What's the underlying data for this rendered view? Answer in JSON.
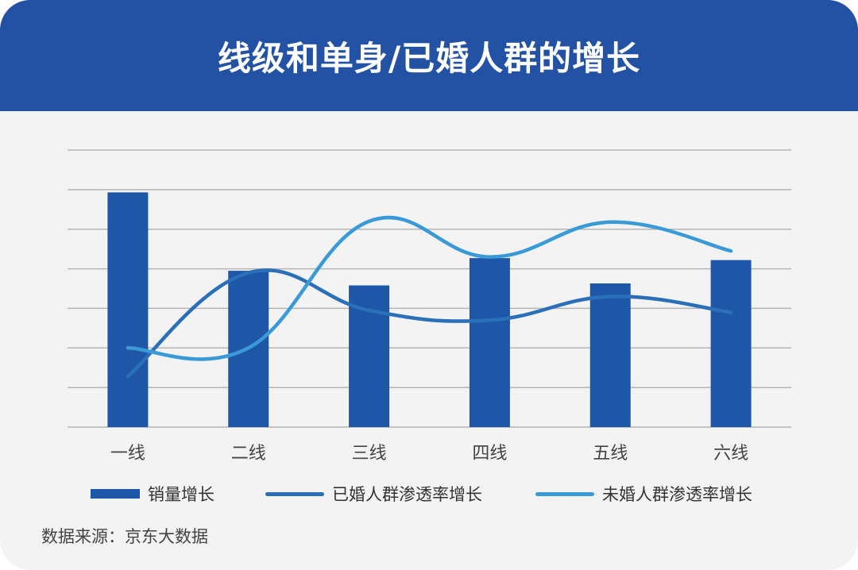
{
  "header": {
    "title": "线级和单身/已婚人群的增长"
  },
  "colors": {
    "header_bg": "#2352a5",
    "bar": "#1f57a8",
    "married_line": "#2a6fb8",
    "unmarried_line": "#3a9ad8",
    "grid": "#b5b5b5",
    "card_bg": "#f3f3f3"
  },
  "chart_data": {
    "type": "bar",
    "title": "线级和单身/已婚人群的增长",
    "categories": [
      "一线",
      "二线",
      "三线",
      "四线",
      "五线",
      "六线"
    ],
    "ylim": [
      0,
      7
    ],
    "grid": true,
    "legend_position": "bottom",
    "series": [
      {
        "name": "销量增长",
        "type": "bar",
        "values": [
          5.93,
          3.95,
          3.58,
          4.27,
          3.63,
          4.22
        ]
      },
      {
        "name": "已婚人群渗透率增长",
        "type": "line",
        "values": [
          1.28,
          3.9,
          2.95,
          2.7,
          3.3,
          2.9
        ]
      },
      {
        "name": "未婚人群渗透率增长",
        "type": "line",
        "values": [
          2.0,
          2.0,
          5.2,
          4.3,
          5.18,
          4.45
        ]
      }
    ]
  },
  "source": {
    "text": "数据来源：京东大数据"
  }
}
